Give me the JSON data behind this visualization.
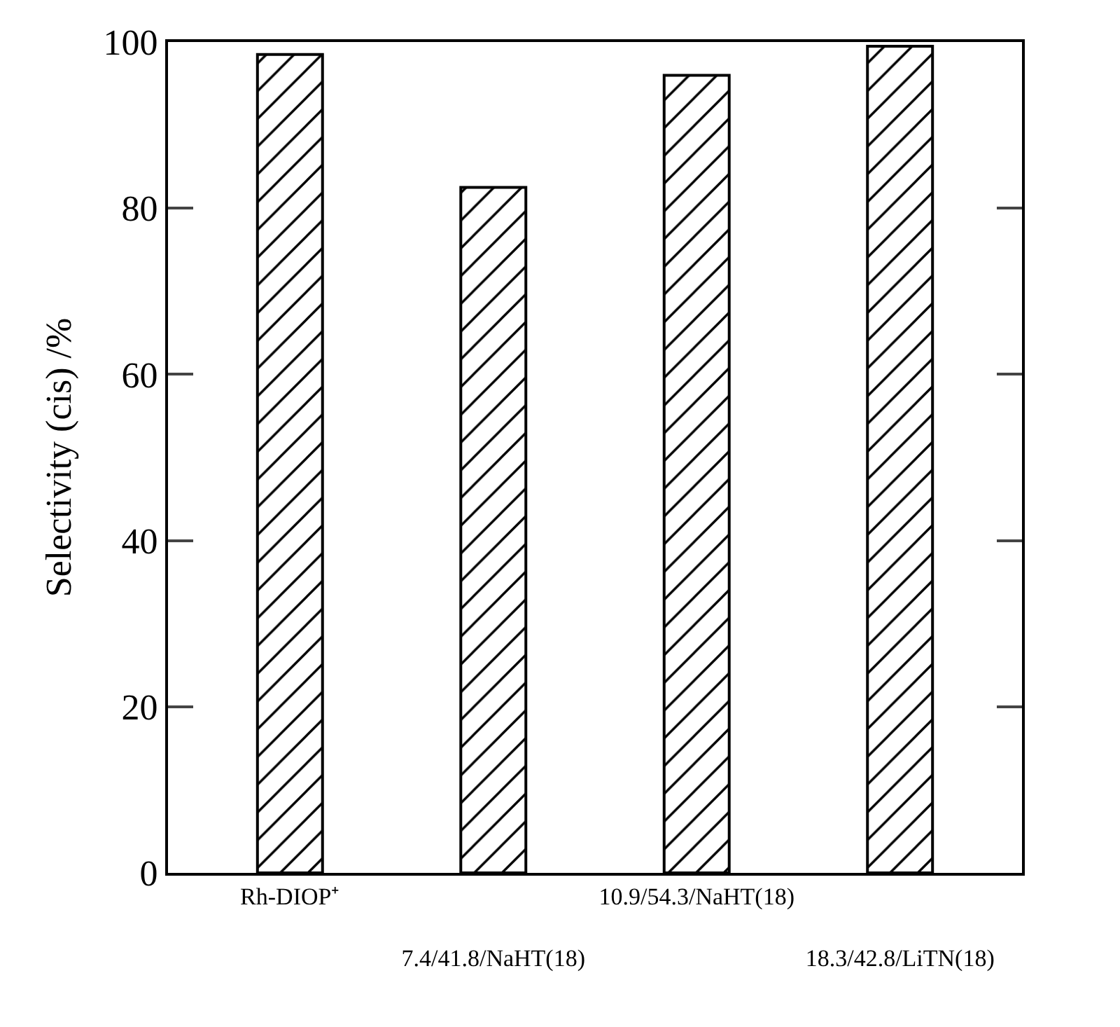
{
  "chart_data": {
    "type": "bar",
    "ylabel": "Selectivity (cis) /%",
    "categories": [
      "Rh-DIOP⁺",
      "7.4/41.8/NaHT(18)",
      "10.9/54.3/NaHT(18)",
      "18.3/42.8/LiTN(18)"
    ],
    "values": [
      98.5,
      82.5,
      96,
      99.5
    ],
    "color": "#000000",
    "ylim": [
      0,
      100
    ],
    "yticks": [
      0,
      20,
      40,
      60,
      80,
      100
    ],
    "grid": false,
    "legend": false
  }
}
